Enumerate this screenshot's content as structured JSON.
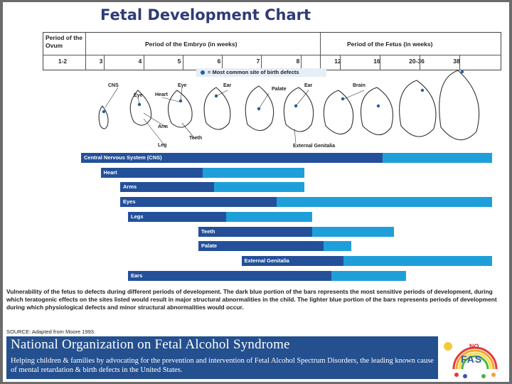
{
  "title": "Fetal Development Chart",
  "header": {
    "period_ovum": "Period of the Ovum",
    "period_embryo": "Period of the Embryo (in weeks)",
    "period_fetus": "Period of the Fetus (in weeks)",
    "weeks": [
      "1-2",
      "3",
      "4",
      "5",
      "6",
      "7",
      "8",
      "12",
      "16",
      "20-36",
      "38"
    ]
  },
  "legend": "= Most common site of birth defects",
  "figure_labels": {
    "cns": "CNS",
    "eye1": "Eye",
    "heart": "Heart",
    "eye2": "Eye",
    "ear1": "Ear",
    "palate": "Palate",
    "ear2": "Ear",
    "brain": "Brain",
    "arm": "Arm",
    "leg": "Leg",
    "teeth": "Teeth",
    "genitalia": "External Genitalia"
  },
  "bars": [
    {
      "label": "Central Nervous System (CNS)",
      "dark_start": 0,
      "dark_end": 7.7,
      "light_end": 10.5
    },
    {
      "label": "Heart",
      "dark_start": 0.5,
      "dark_end": 3.1,
      "light_end": 5.7
    },
    {
      "label": "Arms",
      "dark_start": 1.0,
      "dark_end": 3.4,
      "light_end": 5.7
    },
    {
      "label": "Eyes",
      "dark_start": 1.0,
      "dark_end": 5.0,
      "light_end": 10.5
    },
    {
      "label": "Legs",
      "dark_start": 1.2,
      "dark_end": 3.7,
      "light_end": 5.9
    },
    {
      "label": "Teeth",
      "dark_start": 3.0,
      "dark_end": 5.9,
      "light_end": 8.0
    },
    {
      "label": "Palate",
      "dark_start": 3.0,
      "dark_end": 6.2,
      "light_end": 6.9
    },
    {
      "label": "External Genitalia",
      "dark_start": 4.1,
      "dark_end": 6.7,
      "light_end": 10.5
    },
    {
      "label": "Ears",
      "dark_start": 1.2,
      "dark_end": 6.4,
      "light_end": 8.3
    }
  ],
  "caption": "Vulnerability of the fetus to defects during different periods of development. The dark blue portion of the bars represents the most sensitive periods of development, during which teratogenic effects on the sites listed would result in major structural abnormalities in the child. The lighter blue portion of the bars represents periods of development during which physiological defects and minor structural abnormalities would occur.",
  "source": "SOURCE: Adapted from Moore 1993.",
  "banner": {
    "org": "National Organization on Fetal Alcohol Syndrome",
    "mission": "Helping children & families by advocating for the prevention and intervention of Fetal Alcohol Spectrum Disorders, the leading known cause of mental retardation & birth defects in the United States."
  },
  "logo": {
    "no": "NO",
    "fas": "FAS"
  },
  "colors": {
    "dark": "#24509a",
    "light": "#1e9fd9",
    "banner": "#24508f",
    "title": "#2f3b78"
  }
}
